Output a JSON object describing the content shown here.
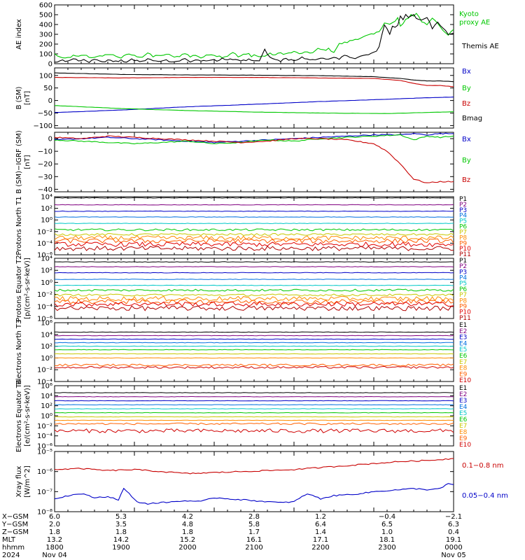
{
  "chart_data": [
    {
      "type": "line",
      "ylabel": "AE index",
      "ylim": [
        0,
        600
      ],
      "yticks": [
        "0",
        "100",
        "200",
        "300",
        "400",
        "500",
        "600"
      ],
      "legend_placement": "right",
      "series": [
        {
          "name": "Kyoto proxy AE",
          "color": "#00c800",
          "x": [
            0,
            6,
            10,
            14,
            18,
            22,
            28,
            32,
            36,
            40,
            46,
            50,
            56,
            60,
            66,
            70,
            74,
            78,
            82,
            86,
            90,
            94,
            98,
            102,
            106,
            110,
            114,
            118,
            122,
            126,
            130,
            134,
            138,
            142,
            146,
            148,
            150,
            154,
            158,
            162,
            166,
            170,
            174,
            180,
            186,
            190,
            194,
            198,
            202,
            206,
            210,
            214,
            220,
            226,
            232,
            236,
            240,
            244,
            248,
            252,
            256,
            258,
            260,
            262,
            264,
            266,
            268,
            270,
            272,
            274,
            276,
            280,
            284,
            288,
            292,
            296,
            300
          ],
          "y": [
            100,
            50,
            60,
            80,
            70,
            90,
            60,
            80,
            70,
            100,
            80,
            60,
            100,
            80,
            70,
            110,
            70,
            90,
            80,
            100,
            60,
            80,
            110,
            70,
            90,
            60,
            80,
            100,
            80,
            70,
            80,
            120,
            70,
            90,
            100,
            80,
            90,
            70,
            80,
            100,
            90,
            110,
            100,
            120,
            100,
            120,
            110,
            150,
            140,
            150,
            120,
            200,
            220,
            250,
            270,
            290,
            300,
            330,
            420,
            400,
            430,
            470,
            380,
            400,
            450,
            470,
            500,
            490,
            510,
            480,
            430,
            400,
            470,
            420,
            330,
            290,
            350
          ]
        },
        {
          "name": "Themis AE",
          "color": "#000000",
          "x": [
            0,
            6,
            10,
            14,
            18,
            22,
            26,
            30,
            34,
            38,
            42,
            46,
            50,
            54,
            58,
            62,
            66,
            70,
            74,
            78,
            82,
            86,
            90,
            94,
            98,
            102,
            106,
            110,
            114,
            118,
            122,
            126,
            130,
            134,
            138,
            142,
            146,
            150,
            154,
            158,
            162,
            166,
            170,
            174,
            178,
            182,
            186,
            190,
            194,
            198,
            202,
            206,
            210,
            214,
            218,
            222,
            226,
            230,
            234,
            238,
            242,
            244,
            246,
            248,
            250,
            252,
            254,
            256,
            258,
            260,
            262,
            264,
            266,
            268,
            270,
            272,
            276,
            280,
            284,
            288,
            292,
            296,
            300
          ],
          "y": [
            10,
            40,
            20,
            60,
            30,
            50,
            20,
            40,
            30,
            20,
            40,
            20,
            30,
            20,
            40,
            30,
            20,
            50,
            30,
            20,
            40,
            30,
            20,
            30,
            50,
            20,
            40,
            30,
            20,
            40,
            30,
            60,
            30,
            50,
            40,
            30,
            40,
            20,
            30,
            140,
            60,
            40,
            30,
            50,
            40,
            30,
            60,
            40,
            50,
            40,
            60,
            40,
            60,
            50,
            80,
            70,
            60,
            80,
            90,
            110,
            120,
            180,
            300,
            400,
            350,
            300,
            380,
            370,
            400,
            480,
            450,
            500,
            470,
            490,
            510,
            460,
            440,
            480,
            350,
            430,
            360,
            300,
            310
          ]
        }
      ]
    },
    {
      "type": "line",
      "ylabel": "B (SM)",
      "yunit": "[nT]",
      "ylim": [
        -110,
        130
      ],
      "yticks": [
        "100",
        "50",
        "0",
        "−50",
        "−100"
      ],
      "legend_placement": "right",
      "series": [
        {
          "name": "Bx",
          "color": "#0000c8",
          "x": [
            0,
            50,
            100,
            150,
            200,
            250,
            270,
            300
          ],
          "y": [
            -48,
            -38,
            -25,
            -15,
            -4,
            5,
            9,
            14
          ]
        },
        {
          "name": "By",
          "color": "#00c800",
          "x": [
            0,
            50,
            100,
            150,
            200,
            250,
            300
          ],
          "y": [
            -20,
            -32,
            -40,
            -46,
            -50,
            -52,
            -45
          ]
        },
        {
          "name": "Bz",
          "color": "#c80000",
          "x": [
            0,
            50,
            100,
            150,
            200,
            240,
            260,
            270,
            280,
            290,
            300
          ],
          "y": [
            92,
            90,
            92,
            92,
            90,
            88,
            80,
            68,
            60,
            60,
            55
          ]
        },
        {
          "name": "Bmag",
          "color": "#000000",
          "x": [
            0,
            50,
            100,
            150,
            200,
            240,
            260,
            270,
            280,
            290,
            300
          ],
          "y": [
            110,
            104,
            102,
            101,
            99,
            95,
            88,
            82,
            78,
            78,
            75
          ]
        }
      ]
    },
    {
      "type": "line",
      "ylabel": "B (SM)−IGRF (SM)",
      "yunit": "[nT]",
      "ylim": [
        -42,
        5
      ],
      "yticks": [
        "0",
        "−10",
        "−20",
        "−30",
        "−40"
      ],
      "legend_placement": "right",
      "series": [
        {
          "name": "Bx",
          "color": "#0000c8",
          "x": [
            0,
            20,
            40,
            60,
            80,
            100,
            120,
            140,
            160,
            180,
            200,
            220,
            240,
            260,
            270,
            280,
            290,
            300
          ],
          "y": [
            -1,
            0,
            1,
            0,
            -1,
            -2,
            -3,
            -2,
            -1,
            0,
            1,
            2,
            3,
            3,
            4,
            3,
            4,
            4
          ]
        },
        {
          "name": "By",
          "color": "#00c800",
          "x": [
            0,
            20,
            40,
            60,
            80,
            100,
            120,
            140,
            160,
            180,
            200,
            220,
            240,
            260,
            270,
            280,
            290,
            300
          ],
          "y": [
            -1,
            -2,
            -3,
            -4,
            -3,
            -2,
            -4,
            -3,
            -1,
            -2,
            0,
            1,
            2,
            3,
            -1,
            2,
            1,
            2
          ]
        },
        {
          "name": "Bz",
          "color": "#c80000",
          "x": [
            0,
            20,
            40,
            60,
            80,
            100,
            120,
            140,
            160,
            180,
            200,
            220,
            240,
            250,
            260,
            270,
            280,
            290,
            300
          ],
          "y": [
            1,
            0,
            2,
            1,
            0,
            -1,
            -2,
            -3,
            -2,
            0,
            0,
            -1,
            -4,
            -10,
            -20,
            -32,
            -35,
            -34,
            -34
          ]
        }
      ]
    },
    {
      "type": "line",
      "ylabel": "Protons North T1",
      "log_scale": true,
      "ylim": [
        1e-06,
        10000.0
      ],
      "yticks": [
        "10⁴",
        "10²",
        "10⁰",
        "10⁻²",
        "10⁻⁴",
        "10⁻⁶"
      ],
      "legend_placement": "right",
      "series": [
        {
          "name": "P1",
          "color": "#000000",
          "level": 3.8
        },
        {
          "name": "P2",
          "color": "#800080",
          "level": 2.6
        },
        {
          "name": "P3",
          "color": "#0000c8",
          "level": 1.5
        },
        {
          "name": "P4",
          "color": "#0070e0",
          "level": 0.5
        },
        {
          "name": "P5",
          "color": "#00c8c8",
          "level": -0.6
        },
        {
          "name": "P6",
          "color": "#00c800",
          "level": -1.7
        },
        {
          "name": "P7",
          "color": "#c8c800",
          "level": -2.5
        },
        {
          "name": "P8",
          "color": "#ff8c00",
          "level": -3.1
        },
        {
          "name": "P9",
          "color": "#ff6000",
          "level": -3.6
        },
        {
          "name": "P10",
          "color": "#e00000",
          "level": -4.2
        },
        {
          "name": "P11",
          "color": "#b00000",
          "level": -4.9
        }
      ]
    },
    {
      "type": "line",
      "ylabel": "Protons Equator T2",
      "yunit": "[p/(cm²-s-sr-keV)]",
      "log_scale": true,
      "ylim": [
        1e-06,
        10000.0
      ],
      "yticks": [
        "10⁴",
        "10²",
        "10⁰",
        "10⁻²",
        "10⁻⁴",
        "10⁻⁶"
      ],
      "legend_placement": "right",
      "series": [
        {
          "name": "P1",
          "color": "#000000",
          "level": 3.4
        },
        {
          "name": "P2",
          "color": "#800080",
          "level": 2.6
        },
        {
          "name": "P3",
          "color": "#0000c8",
          "level": 1.6
        },
        {
          "name": "P4",
          "color": "#0070e0",
          "level": 0.5
        },
        {
          "name": "P5",
          "color": "#00c8c8",
          "level": -0.5
        },
        {
          "name": "P6",
          "color": "#00c800",
          "level": -1.3
        },
        {
          "name": "P7",
          "color": "#c8c800",
          "level": -2.1
        },
        {
          "name": "P8",
          "color": "#ff8c00",
          "level": -2.7
        },
        {
          "name": "P9",
          "color": "#ff6000",
          "level": -3.2
        },
        {
          "name": "P10",
          "color": "#e00000",
          "level": -3.6
        },
        {
          "name": "P11",
          "color": "#b00000",
          "level": -4.3
        }
      ]
    },
    {
      "type": "line",
      "ylabel": "Electrons North T3",
      "log_scale": true,
      "ylim": [
        0.0001,
        1000000.0
      ],
      "yticks": [
        "10⁶",
        "10⁴",
        "10²",
        "10⁰",
        "10⁻²",
        "10⁻⁴"
      ],
      "legend_placement": "right",
      "series": [
        {
          "name": "E1",
          "color": "#000000",
          "level": 4.4
        },
        {
          "name": "E2",
          "color": "#800080",
          "level": 3.8
        },
        {
          "name": "E3",
          "color": "#0000c8",
          "level": 3.2
        },
        {
          "name": "E4",
          "color": "#0070e0",
          "level": 2.6
        },
        {
          "name": "E5",
          "color": "#00c8c8",
          "level": 2.0
        },
        {
          "name": "E6",
          "color": "#00c800",
          "level": 1.4
        },
        {
          "name": "E7",
          "color": "#c8c800",
          "level": 0.7
        },
        {
          "name": "E8",
          "color": "#ff8c00",
          "level": 0.0
        },
        {
          "name": "E9",
          "color": "#ff6000",
          "level": -1.2
        },
        {
          "name": "E10",
          "color": "#d00000",
          "level": -1.6
        }
      ]
    },
    {
      "type": "line",
      "ylabel": "Electrons Equator T4",
      "yunit": "[e/(cm²-s-sr-keV)]",
      "log_scale": true,
      "ylim": [
        1e-06,
        1000000.0
      ],
      "yticks": [
        "10⁶",
        "10⁴",
        "10²",
        "10⁰",
        "10⁻²",
        "10⁻⁴",
        "10⁻⁶"
      ],
      "legend_placement": "right",
      "series": [
        {
          "name": "E1",
          "color": "#000000",
          "level": 4.6
        },
        {
          "name": "E2",
          "color": "#800080",
          "level": 3.8
        },
        {
          "name": "E3",
          "color": "#0000c8",
          "level": 3.0
        },
        {
          "name": "E4",
          "color": "#0070e0",
          "level": 2.2
        },
        {
          "name": "E5",
          "color": "#00c8c8",
          "level": 1.4
        },
        {
          "name": "E6",
          "color": "#00c800",
          "level": 0.6
        },
        {
          "name": "E7",
          "color": "#c8c800",
          "level": -0.2
        },
        {
          "name": "E8",
          "color": "#ff8c00",
          "level": -0.9
        },
        {
          "name": "E9",
          "color": "#ff6000",
          "level": -1.6
        },
        {
          "name": "E10",
          "color": "#d00000",
          "level": -3.0
        }
      ]
    },
    {
      "type": "line",
      "ylabel": "Xray flux",
      "yunit": "[W/m^2]",
      "log_scale": true,
      "ylim": [
        1e-08,
        1e-05
      ],
      "yticks": [
        "10⁻⁵",
        "10⁻⁶",
        "10⁻⁷",
        "10⁻⁸"
      ],
      "legend_placement": "right",
      "series": [
        {
          "name": "0.1−0.8 nm",
          "color": "#c80000",
          "x": [
            0,
            20,
            40,
            60,
            80,
            100,
            120,
            140,
            160,
            180,
            200,
            220,
            240,
            260,
            280,
            300
          ],
          "y": [
            -5.9,
            -5.85,
            -5.95,
            -5.9,
            -6.0,
            -6.1,
            -6.05,
            -6.0,
            -5.95,
            -5.9,
            -5.8,
            -5.7,
            -5.6,
            -5.5,
            -5.45,
            -5.35
          ]
        },
        {
          "name": "0.05−0.4 nm",
          "color": "#0000c8",
          "x": [
            0,
            10,
            20,
            30,
            40,
            48,
            52,
            56,
            60,
            64,
            70,
            80,
            90,
            100,
            110,
            120,
            130,
            140,
            150,
            160,
            170,
            180,
            190,
            200,
            210,
            220,
            230,
            240,
            250,
            260,
            270,
            280,
            290,
            296,
            300
          ],
          "y": [
            -7.35,
            -7.2,
            -7.1,
            -7.3,
            -7.25,
            -7.4,
            -6.85,
            -7.1,
            -7.4,
            -7.55,
            -7.6,
            -7.55,
            -7.5,
            -7.45,
            -7.5,
            -7.3,
            -7.35,
            -7.4,
            -7.45,
            -7.5,
            -7.55,
            -7.5,
            -7.1,
            -7.35,
            -7.2,
            -7.15,
            -7.1,
            -7.0,
            -6.95,
            -6.9,
            -6.85,
            -6.9,
            -6.85,
            -6.6,
            -6.65
          ]
        }
      ]
    }
  ],
  "time_axis": {
    "labels": [
      "X−GSM",
      "Y−GSM",
      "Z−GSM",
      "MLT",
      "hhmm",
      "2024"
    ],
    "columns": [
      [
        "6.0",
        "2.0",
        "1.8",
        "13.2",
        "1800",
        "Nov 04"
      ],
      [
        "5.3",
        "3.5",
        "1.8",
        "14.2",
        "1900",
        ""
      ],
      [
        "4.2",
        "4.8",
        "1.8",
        "15.2",
        "2000",
        ""
      ],
      [
        "2.8",
        "5.8",
        "1.7",
        "16.1",
        "2100",
        ""
      ],
      [
        "1.2",
        "6.4",
        "1.4",
        "17.1",
        "2200",
        ""
      ],
      [
        "−0.4",
        "6.5",
        "1.0",
        "18.1",
        "2300",
        ""
      ],
      [
        "−2.1",
        "6.3",
        "0.4",
        "19.1",
        "0000",
        "Nov 05"
      ]
    ]
  }
}
